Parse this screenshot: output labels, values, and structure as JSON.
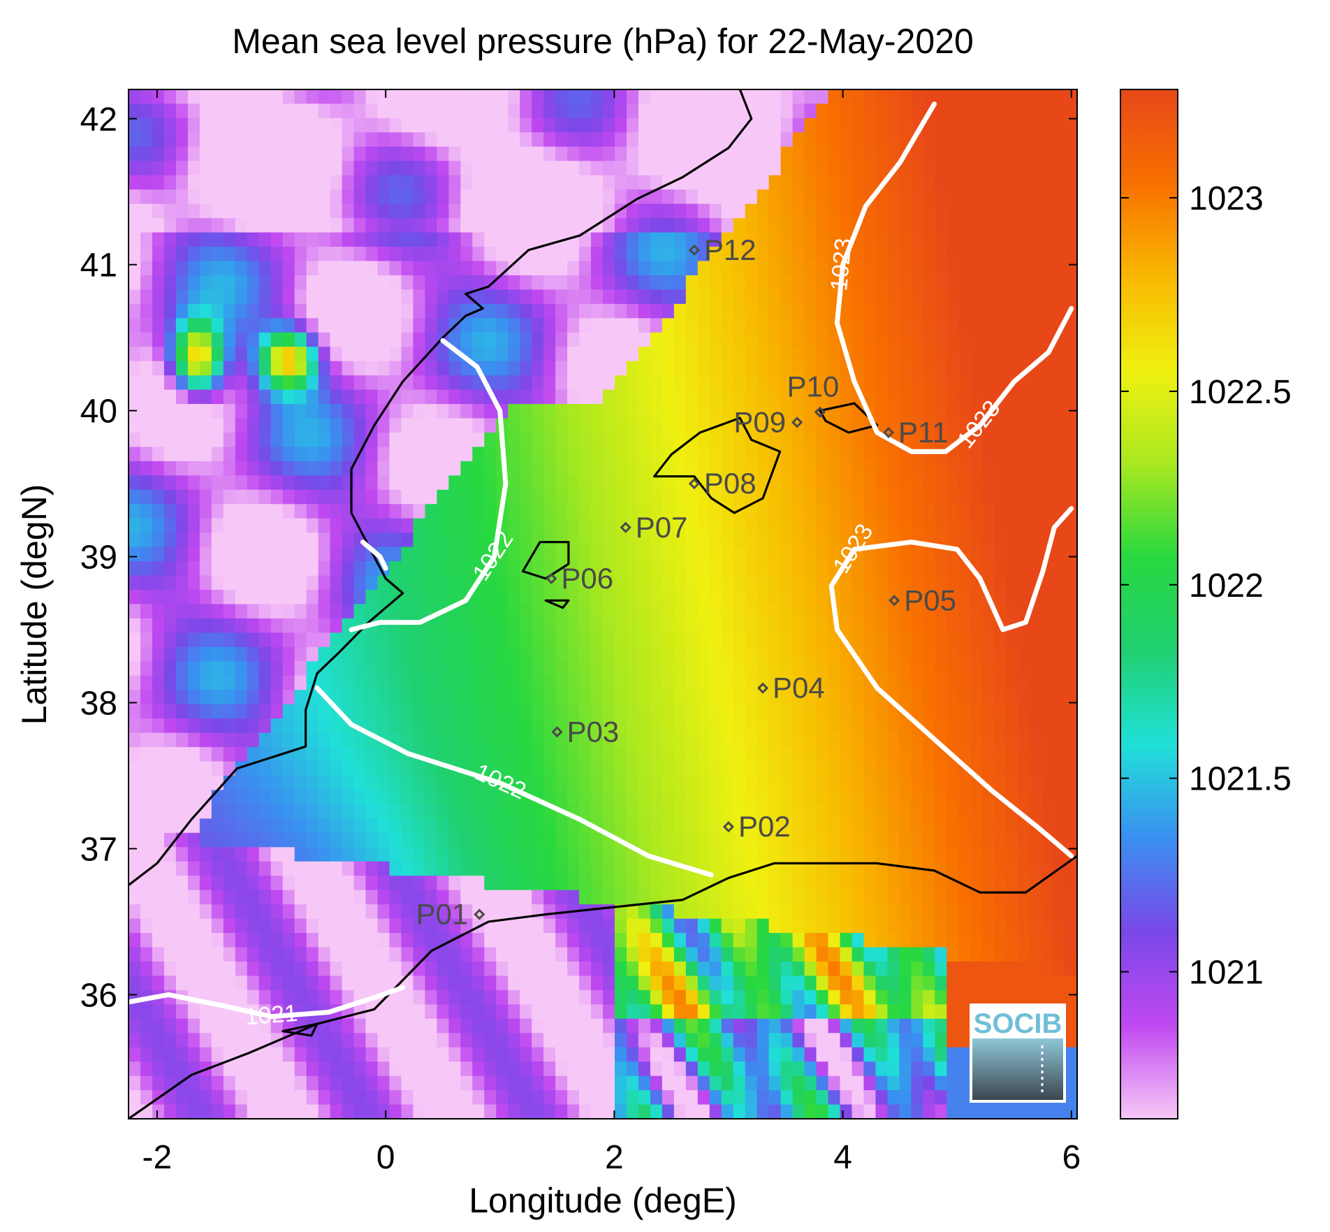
{
  "chart_data": {
    "type": "heatmap",
    "title": "Mean sea level pressure (hPa) for 22-May-2020",
    "xlabel": "Longitude (degE)",
    "ylabel": "Latitude (degN)",
    "xlim": [
      -2.25,
      6.05
    ],
    "ylim": [
      35.15,
      42.2
    ],
    "xticks": [
      -2,
      0,
      2,
      4,
      6
    ],
    "yticks": [
      36,
      37,
      38,
      39,
      40,
      41,
      42
    ],
    "grid": false,
    "colorbar": {
      "label": "",
      "range": [
        1020.62,
        1023.28
      ],
      "ticks": [
        1021,
        1021.5,
        1022,
        1022.5,
        1023
      ],
      "tick_labels": [
        "1021",
        "1021.5",
        "1022",
        "1022.5",
        "1023"
      ],
      "colors": [
        "#f7c8f7",
        "#c048f0",
        "#7a48e8",
        "#3a8ff0",
        "#20e0d8",
        "#20d070",
        "#28d840",
        "#a8e820",
        "#f0f010",
        "#f8b800",
        "#f87000",
        "#e84818"
      ]
    },
    "contours": [
      {
        "level": 1021,
        "label": "1021",
        "points": [
          [
            -2.25,
            35.95
          ],
          [
            -1.9,
            36.0
          ],
          [
            -1.4,
            35.92
          ],
          [
            -1.0,
            35.85
          ],
          [
            -0.5,
            35.88
          ],
          [
            -0.1,
            35.98
          ],
          [
            0.15,
            36.05
          ]
        ]
      },
      {
        "level": 1022,
        "label": "1022",
        "points": [
          [
            0.5,
            40.48
          ],
          [
            0.8,
            40.3
          ],
          [
            1.0,
            40.0
          ],
          [
            1.05,
            39.5
          ],
          [
            0.95,
            39.0
          ],
          [
            0.7,
            38.7
          ],
          [
            0.3,
            38.55
          ],
          [
            -0.05,
            38.55
          ],
          [
            -0.3,
            38.5
          ]
        ]
      },
      {
        "level": 1022,
        "label": "1022",
        "points": [
          [
            -0.6,
            38.1
          ],
          [
            -0.3,
            37.85
          ],
          [
            0.2,
            37.65
          ],
          [
            1.0,
            37.45
          ],
          [
            1.7,
            37.2
          ],
          [
            2.3,
            36.95
          ],
          [
            2.85,
            36.82
          ]
        ]
      },
      {
        "level": 1022,
        "label": "",
        "points": [
          [
            -0.2,
            39.1
          ],
          [
            -0.05,
            39.0
          ],
          [
            0.0,
            38.92
          ]
        ]
      },
      {
        "level": 1023,
        "label": "1023",
        "points": [
          [
            4.8,
            42.1
          ],
          [
            4.5,
            41.7
          ],
          [
            4.2,
            41.4
          ],
          [
            4.0,
            41.0
          ],
          [
            3.95,
            40.6
          ],
          [
            4.1,
            40.2
          ],
          [
            4.3,
            39.85
          ]
        ]
      },
      {
        "level": 1023,
        "label": "1023",
        "points": [
          [
            4.3,
            39.85
          ],
          [
            4.6,
            39.72
          ],
          [
            4.9,
            39.72
          ],
          [
            5.2,
            39.9
          ],
          [
            5.5,
            40.2
          ],
          [
            5.8,
            40.4
          ],
          [
            6.0,
            40.7
          ]
        ]
      },
      {
        "level": 1023,
        "label": "1023",
        "points": [
          [
            6.0,
            39.33
          ],
          [
            5.85,
            39.2
          ],
          [
            5.75,
            38.9
          ],
          [
            5.6,
            38.55
          ],
          [
            5.4,
            38.5
          ],
          [
            5.2,
            38.85
          ],
          [
            5.0,
            39.05
          ],
          [
            4.6,
            39.1
          ],
          [
            4.1,
            39.05
          ],
          [
            3.9,
            38.8
          ],
          [
            3.95,
            38.5
          ],
          [
            4.3,
            38.1
          ],
          [
            4.8,
            37.75
          ],
          [
            5.3,
            37.4
          ],
          [
            5.7,
            37.15
          ],
          [
            6.0,
            36.95
          ]
        ]
      }
    ],
    "points": [
      {
        "label": "P01",
        "lon": 0.82,
        "lat": 36.55
      },
      {
        "label": "P02",
        "lon": 3.0,
        "lat": 37.15
      },
      {
        "label": "P03",
        "lon": 1.5,
        "lat": 37.8
      },
      {
        "label": "P04",
        "lon": 3.3,
        "lat": 38.1
      },
      {
        "label": "P05",
        "lon": 4.45,
        "lat": 38.7
      },
      {
        "label": "P06",
        "lon": 1.45,
        "lat": 38.85
      },
      {
        "label": "P07",
        "lon": 2.1,
        "lat": 39.2
      },
      {
        "label": "P08",
        "lon": 2.7,
        "lat": 39.5
      },
      {
        "label": "P09",
        "lon": 3.6,
        "lat": 39.92
      },
      {
        "label": "P10",
        "lon": 3.8,
        "lat": 39.99
      },
      {
        "label": "P11",
        "lon": 4.4,
        "lat": 39.85
      },
      {
        "label": "P12",
        "lon": 2.7,
        "lat": 41.1
      }
    ]
  },
  "logo": {
    "text": "SOCIB"
  }
}
